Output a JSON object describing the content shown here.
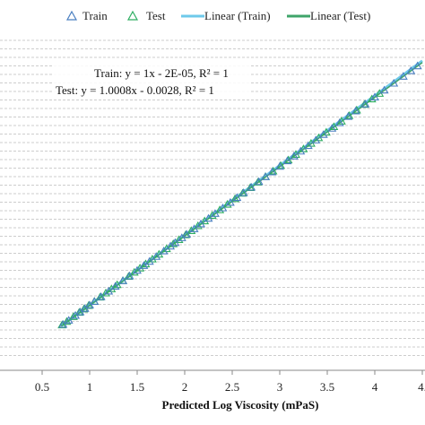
{
  "chart_data": {
    "type": "scatter",
    "xlabel": "Predicted Log Viscosity (mPaS)",
    "ylabel": "",
    "xlim": [
      0.5,
      4.5
    ],
    "xticks": [
      "0.5",
      "1",
      "1.5",
      "2",
      "2.5",
      "3",
      "3.5",
      "4",
      "4."
    ],
    "ylim": [
      0.5,
      4.6
    ],
    "grid": "horizontal dashed",
    "legend_position": "top",
    "legend": [
      {
        "label": "Train",
        "marker": "triangle",
        "color": "#4a7fc1"
      },
      {
        "label": "Test",
        "marker": "triangle",
        "color": "#2eae62"
      },
      {
        "label": "Linear (Train)",
        "marker": "line",
        "color": "#6ec9ea"
      },
      {
        "label": "Linear (Test)",
        "marker": "line",
        "color": "#3fa46a"
      }
    ],
    "annotations": [
      "Train: y = 1x - 2E-05, R² = 1",
      "Test: y = 1.0008x - 0.0028, R² = 1"
    ],
    "series": [
      {
        "name": "Train",
        "marker": "triangle-open",
        "color": "#4a7fc1",
        "x": [
          0.72,
          0.78,
          0.85,
          0.9,
          0.95,
          1.0,
          1.05,
          1.12,
          1.2,
          1.27,
          1.35,
          1.42,
          1.5,
          1.57,
          1.63,
          1.7,
          1.78,
          1.85,
          1.9,
          1.97,
          2.02,
          2.1,
          2.17,
          2.25,
          2.32,
          2.4,
          2.48,
          2.55,
          2.62,
          2.7,
          2.78,
          2.85,
          2.92,
          3.0,
          3.08,
          3.15,
          3.22,
          3.3,
          3.38,
          3.46,
          3.55,
          3.63,
          3.72,
          3.8,
          3.9,
          4.0,
          4.1,
          4.2,
          4.3,
          4.38,
          4.45
        ],
        "y": [
          0.72,
          0.78,
          0.85,
          0.9,
          0.95,
          1.0,
          1.05,
          1.12,
          1.2,
          1.27,
          1.35,
          1.42,
          1.5,
          1.57,
          1.63,
          1.7,
          1.78,
          1.85,
          1.9,
          1.97,
          2.02,
          2.1,
          2.17,
          2.25,
          2.32,
          2.4,
          2.48,
          2.55,
          2.62,
          2.7,
          2.78,
          2.85,
          2.92,
          3.0,
          3.08,
          3.15,
          3.22,
          3.3,
          3.38,
          3.46,
          3.55,
          3.63,
          3.72,
          3.8,
          3.9,
          4.0,
          4.1,
          4.2,
          4.3,
          4.38,
          4.45
        ]
      },
      {
        "name": "Test",
        "marker": "triangle-open",
        "color": "#2eae62",
        "x": [
          0.7,
          0.75,
          0.82,
          0.88,
          0.93,
          0.98,
          1.04,
          1.1,
          1.16,
          1.22,
          1.28,
          1.34,
          1.4,
          1.46,
          1.52,
          1.58,
          1.65,
          1.72,
          1.8,
          1.87,
          1.93,
          2.0,
          2.06,
          2.13,
          2.2,
          2.28,
          2.36,
          2.44,
          2.52,
          2.6,
          2.68,
          2.76,
          2.84,
          2.92,
          3.0,
          3.08,
          3.16,
          3.24,
          3.32,
          3.4,
          3.48,
          3.56,
          3.64,
          3.72,
          3.8,
          3.88,
          3.96,
          4.04
        ],
        "y": [
          0.7,
          0.75,
          0.82,
          0.88,
          0.93,
          0.98,
          1.04,
          1.1,
          1.16,
          1.22,
          1.28,
          1.34,
          1.4,
          1.46,
          1.52,
          1.58,
          1.65,
          1.72,
          1.8,
          1.87,
          1.93,
          2.0,
          2.06,
          2.13,
          2.2,
          2.28,
          2.36,
          2.44,
          2.52,
          2.6,
          2.68,
          2.76,
          2.84,
          2.92,
          3.0,
          3.08,
          3.16,
          3.24,
          3.32,
          3.4,
          3.48,
          3.56,
          3.64,
          3.72,
          3.8,
          3.88,
          3.96,
          4.04
        ]
      }
    ],
    "trendlines": [
      {
        "name": "Linear (Train)",
        "slope": 1,
        "intercept": -2e-05,
        "x_range": [
          0.7,
          4.5
        ],
        "color": "#6ec9ea"
      },
      {
        "name": "Linear (Test)",
        "slope": 1.0008,
        "intercept": -0.0028,
        "x_range": [
          0.7,
          4.5
        ],
        "color": "#3fa46a"
      }
    ]
  }
}
